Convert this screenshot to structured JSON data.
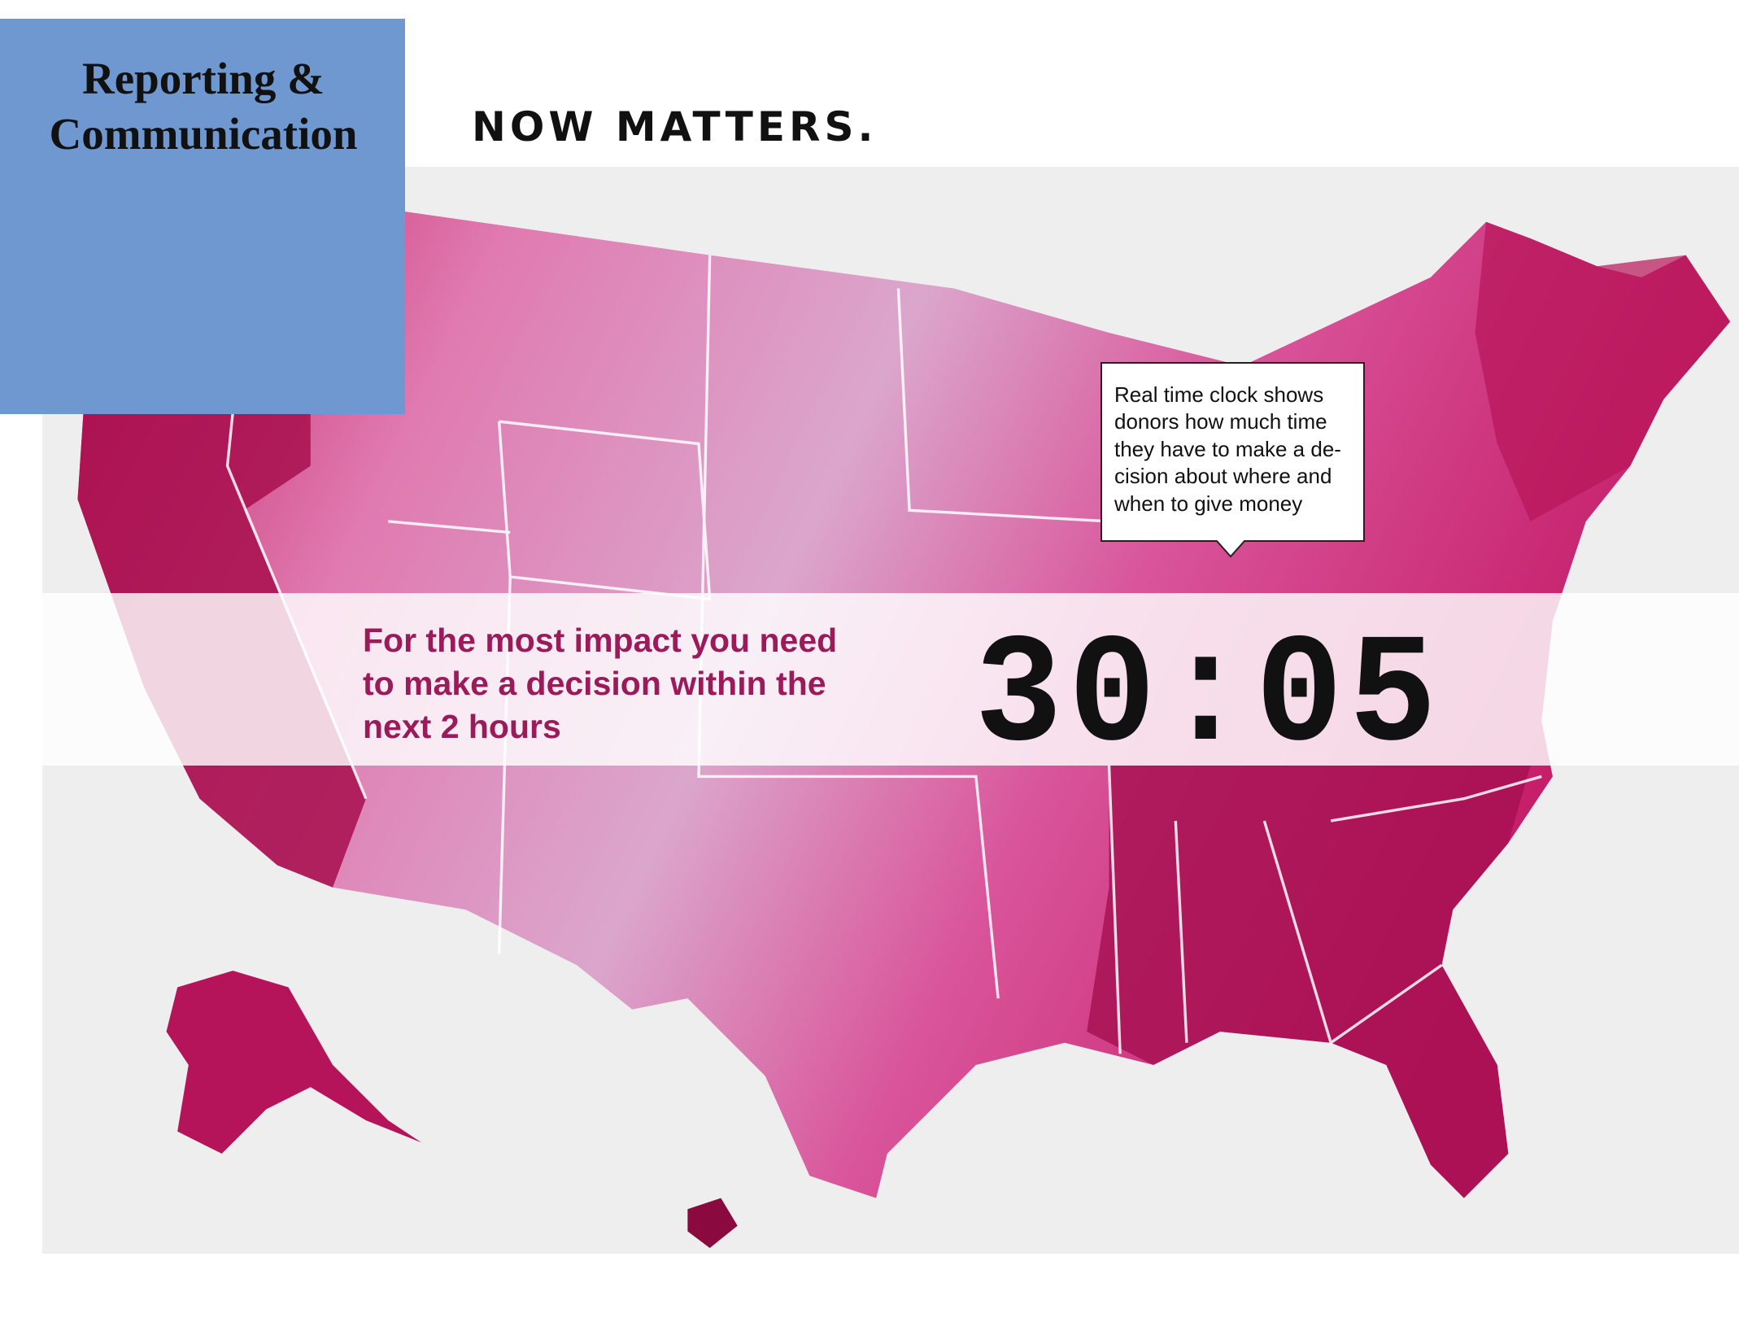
{
  "header": {
    "title_lines": [
      "Reporting &",
      "Communication"
    ],
    "subtitle": "NOW MATTERS."
  },
  "callout": {
    "lines": [
      "Real time clock shows",
      "donors how much time",
      "they have to make a de-",
      "cision about where and",
      "when to give money"
    ]
  },
  "banner": {
    "message_lines": [
      "For the most impact you need",
      "to make a decision within the",
      "next 2 hours"
    ],
    "clock": "30:05"
  }
}
